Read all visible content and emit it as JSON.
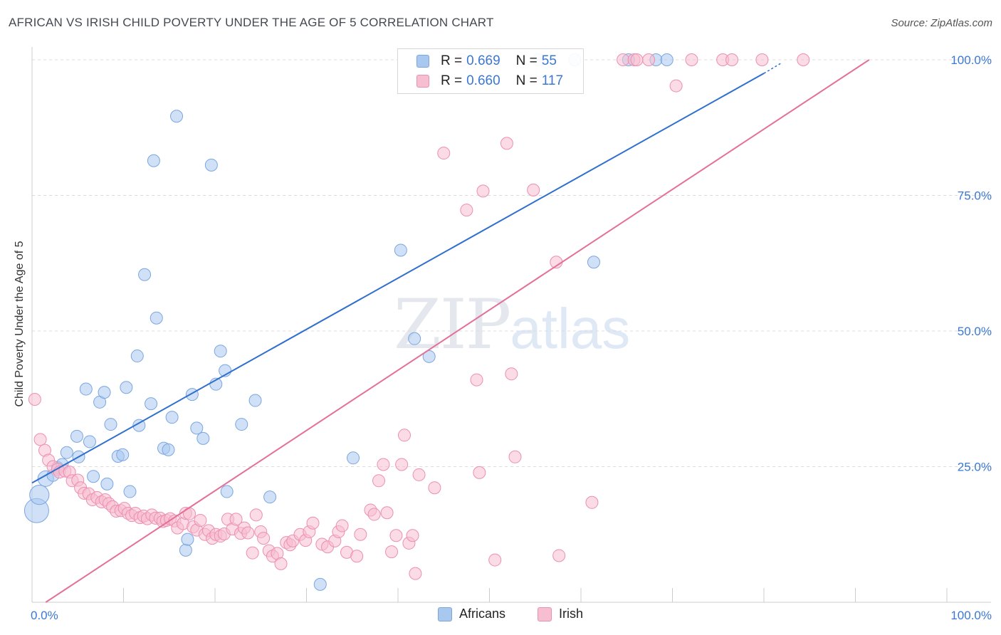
{
  "title": "AFRICAN VS IRISH CHILD POVERTY UNDER THE AGE OF 5 CORRELATION CHART",
  "source": "Source: ZipAtlas.com",
  "watermark": {
    "zip": "ZIP",
    "atlas": "atlas"
  },
  "legend": {
    "rows": [
      {
        "r_label": "R =",
        "r_value": "0.669",
        "n_label": "N =",
        "n_value": "55",
        "color": "#a9c8f0",
        "stroke": "#7aa6e0"
      },
      {
        "r_label": "R =",
        "r_value": "0.660",
        "n_label": "N =",
        "n_value": "117",
        "color": "#f7bdd0",
        "stroke": "#ec8fb0"
      }
    ]
  },
  "bottom_legend": [
    {
      "name": "Africans",
      "color": "#a9c8f0",
      "stroke": "#7aa6e0"
    },
    {
      "name": "Irish",
      "color": "#f7bdd0",
      "stroke": "#ec8fb0"
    }
  ],
  "chart_data": {
    "type": "scatter",
    "title": "AFRICAN VS IRISH CHILD POVERTY UNDER THE AGE OF 5 CORRELATION CHART",
    "xlabel": "",
    "ylabel": "Child Poverty Under the Age of 5",
    "xlim": [
      0,
      100
    ],
    "ylim": [
      0,
      100
    ],
    "x_tick_labels": [
      "0.0%",
      "100.0%"
    ],
    "y_tick_labels": [
      "25.0%",
      "50.0%",
      "75.0%",
      "100.0%"
    ],
    "y_tick_values": [
      25,
      50,
      75,
      100
    ],
    "grid": true,
    "legend_position": "top-center",
    "series": [
      {
        "name": "Africans",
        "color": "#a9c8f0",
        "stroke": "#7aa6e0",
        "line_color": "#2f6fcf",
        "trend": {
          "x0": 0,
          "y0": 22.0,
          "x1": 80,
          "y1": 97.5,
          "dash_to": {
            "x": 82,
            "y": 99.5
          }
        },
        "points": [
          [
            0.5,
            16.9,
            2
          ],
          [
            0.8,
            19.8,
            1.6
          ],
          [
            1.5,
            22.8,
            1.3
          ],
          [
            2.3,
            23.4,
            1
          ],
          [
            2.8,
            24.8,
            1
          ],
          [
            3.3,
            25.4,
            1
          ],
          [
            3.8,
            27.6,
            1
          ],
          [
            5.1,
            26.8,
            1
          ],
          [
            4.9,
            30.6,
            1
          ],
          [
            6.3,
            29.6,
            1
          ],
          [
            6.7,
            23.2,
            1
          ],
          [
            5.9,
            39.3,
            1
          ],
          [
            7.4,
            36.9,
            1
          ],
          [
            7.9,
            38.7,
            1
          ],
          [
            8.2,
            21.8,
            1
          ],
          [
            8.6,
            32.8,
            1
          ],
          [
            9.4,
            26.9,
            1
          ],
          [
            9.9,
            27.2,
            1
          ],
          [
            10.3,
            39.6,
            1
          ],
          [
            10.7,
            20.4,
            1
          ],
          [
            11.5,
            45.4,
            1
          ],
          [
            11.7,
            32.6,
            1
          ],
          [
            12.3,
            60.4,
            1
          ],
          [
            13.0,
            36.6,
            1
          ],
          [
            13.3,
            81.4,
            1
          ],
          [
            13.6,
            52.4,
            1
          ],
          [
            14.4,
            28.4,
            1
          ],
          [
            14.9,
            28.1,
            1
          ],
          [
            15.3,
            34.1,
            1
          ],
          [
            15.8,
            89.6,
            1
          ],
          [
            16.8,
            9.6,
            1
          ],
          [
            17.0,
            11.6,
            1
          ],
          [
            17.5,
            38.3,
            1
          ],
          [
            18.0,
            32.1,
            1
          ],
          [
            18.7,
            30.2,
            1
          ],
          [
            19.6,
            80.6,
            1
          ],
          [
            20.1,
            40.2,
            1
          ],
          [
            20.6,
            46.3,
            1
          ],
          [
            21.1,
            42.7,
            1
          ],
          [
            21.3,
            20.4,
            1
          ],
          [
            22.9,
            32.8,
            1
          ],
          [
            24.4,
            37.2,
            1
          ],
          [
            26.0,
            19.4,
            1
          ],
          [
            31.5,
            3.3,
            1
          ],
          [
            35.1,
            26.6,
            1
          ],
          [
            40.3,
            64.9,
            1
          ],
          [
            41.8,
            48.6,
            1
          ],
          [
            43.4,
            45.3,
            1
          ],
          [
            42.6,
            100,
            1
          ],
          [
            55.4,
            100,
            1
          ],
          [
            59.3,
            100,
            1
          ],
          [
            61.4,
            62.7,
            1
          ],
          [
            65.2,
            100,
            1
          ],
          [
            68.2,
            100,
            1
          ],
          [
            69.4,
            100,
            1
          ]
        ]
      },
      {
        "name": "Irish",
        "color": "#f7bdd0",
        "stroke": "#ec8fb0",
        "line_color": "#e4709a",
        "trend": {
          "x0": 1.5,
          "y0": 0,
          "x1": 91.5,
          "y1": 100
        },
        "points": [
          [
            0.3,
            37.4,
            1
          ],
          [
            0.9,
            30.0,
            1
          ],
          [
            1.4,
            28.0,
            1
          ],
          [
            1.8,
            26.2,
            1
          ],
          [
            2.3,
            25.0,
            1
          ],
          [
            2.8,
            24.5,
            1
          ],
          [
            3.0,
            24.0,
            1
          ],
          [
            3.6,
            24.2,
            1
          ],
          [
            4.1,
            24.0,
            1
          ],
          [
            4.4,
            22.4,
            1
          ],
          [
            5.0,
            22.5,
            1
          ],
          [
            5.3,
            21.1,
            1
          ],
          [
            5.7,
            20.1,
            1
          ],
          [
            6.2,
            20.0,
            1
          ],
          [
            6.6,
            18.9,
            1
          ],
          [
            7.1,
            19.3,
            1
          ],
          [
            7.6,
            18.5,
            1
          ],
          [
            8.0,
            18.9,
            1
          ],
          [
            8.4,
            18.2,
            1
          ],
          [
            8.8,
            17.6,
            1
          ],
          [
            9.2,
            16.8,
            1
          ],
          [
            9.7,
            16.9,
            1
          ],
          [
            10.1,
            17.3,
            1
          ],
          [
            10.5,
            16.4,
            1
          ],
          [
            10.9,
            16.0,
            1
          ],
          [
            11.3,
            16.4,
            1
          ],
          [
            11.8,
            15.6,
            1
          ],
          [
            12.2,
            15.9,
            1
          ],
          [
            12.6,
            15.4,
            1
          ],
          [
            13.1,
            16.1,
            1
          ],
          [
            13.5,
            15.5,
            1
          ],
          [
            14.0,
            15.5,
            1
          ],
          [
            14.3,
            14.9,
            1
          ],
          [
            14.7,
            15.1,
            1
          ],
          [
            15.1,
            15.4,
            1
          ],
          [
            15.6,
            15.0,
            1
          ],
          [
            15.9,
            13.7,
            1
          ],
          [
            16.5,
            14.5,
            1
          ],
          [
            16.8,
            16.4,
            1
          ],
          [
            17.2,
            16.3,
            1
          ],
          [
            17.6,
            13.9,
            1
          ],
          [
            18.0,
            13.3,
            1
          ],
          [
            18.4,
            15.1,
            1
          ],
          [
            18.9,
            12.5,
            1
          ],
          [
            19.3,
            13.2,
            1
          ],
          [
            19.7,
            11.8,
            1
          ],
          [
            20.1,
            12.5,
            1
          ],
          [
            20.6,
            12.2,
            1
          ],
          [
            21.0,
            12.6,
            1
          ],
          [
            21.4,
            15.3,
            1
          ],
          [
            21.9,
            13.5,
            1
          ],
          [
            22.3,
            15.3,
            1
          ],
          [
            22.8,
            12.7,
            1
          ],
          [
            23.2,
            13.7,
            1
          ],
          [
            23.6,
            12.8,
            1
          ],
          [
            24.1,
            9.1,
            1
          ],
          [
            24.5,
            16.1,
            1
          ],
          [
            25.0,
            13.0,
            1
          ],
          [
            25.3,
            11.8,
            1
          ],
          [
            25.9,
            9.5,
            1
          ],
          [
            26.3,
            8.5,
            1
          ],
          [
            26.8,
            9.0,
            1
          ],
          [
            27.2,
            7.1,
            1
          ],
          [
            27.8,
            11.0,
            1
          ],
          [
            28.2,
            10.6,
            1
          ],
          [
            28.5,
            11.3,
            1
          ],
          [
            29.3,
            12.5,
            1
          ],
          [
            29.9,
            11.4,
            1
          ],
          [
            30.3,
            13.0,
            1
          ],
          [
            30.7,
            14.6,
            1
          ],
          [
            31.7,
            10.7,
            1
          ],
          [
            32.3,
            10.2,
            1
          ],
          [
            33.1,
            11.3,
            1
          ],
          [
            33.5,
            13.0,
            1
          ],
          [
            33.9,
            14.1,
            1
          ],
          [
            34.4,
            9.2,
            1
          ],
          [
            35.5,
            8.5,
            1
          ],
          [
            35.9,
            12.5,
            1
          ],
          [
            37.0,
            17.0,
            1
          ],
          [
            37.4,
            16.2,
            1
          ],
          [
            37.9,
            22.4,
            1
          ],
          [
            38.4,
            25.4,
            1
          ],
          [
            38.8,
            16.5,
            1
          ],
          [
            39.3,
            9.3,
            1
          ],
          [
            39.8,
            12.3,
            1
          ],
          [
            40.4,
            25.4,
            1
          ],
          [
            40.7,
            30.8,
            1
          ],
          [
            41.2,
            10.9,
            1
          ],
          [
            41.6,
            12.3,
            1
          ],
          [
            41.9,
            5.3,
            1
          ],
          [
            42.3,
            23.5,
            1
          ],
          [
            44.0,
            21.1,
            1
          ],
          [
            45.0,
            82.8,
            1
          ],
          [
            47.5,
            72.3,
            1
          ],
          [
            48.6,
            41.0,
            1
          ],
          [
            48.9,
            23.9,
            1
          ],
          [
            49.3,
            75.8,
            1
          ],
          [
            50.6,
            7.8,
            1
          ],
          [
            51.9,
            84.6,
            1
          ],
          [
            52.4,
            42.1,
            1
          ],
          [
            52.8,
            26.8,
            1
          ],
          [
            54.8,
            76.0,
            1
          ],
          [
            57.3,
            62.7,
            1
          ],
          [
            57.6,
            8.6,
            1
          ],
          [
            61.2,
            18.4,
            1
          ],
          [
            64.6,
            100,
            1
          ],
          [
            65.8,
            100,
            1
          ],
          [
            67.4,
            100,
            1
          ],
          [
            66.1,
            100,
            1
          ],
          [
            70.4,
            95.2,
            1
          ],
          [
            72.1,
            100,
            1
          ],
          [
            75.5,
            100,
            1
          ],
          [
            76.5,
            100,
            1
          ],
          [
            79.8,
            100,
            1
          ],
          [
            84.3,
            100,
            1
          ],
          [
            47.0,
            100,
            1
          ],
          [
            50.0,
            100,
            1
          ]
        ]
      }
    ]
  }
}
